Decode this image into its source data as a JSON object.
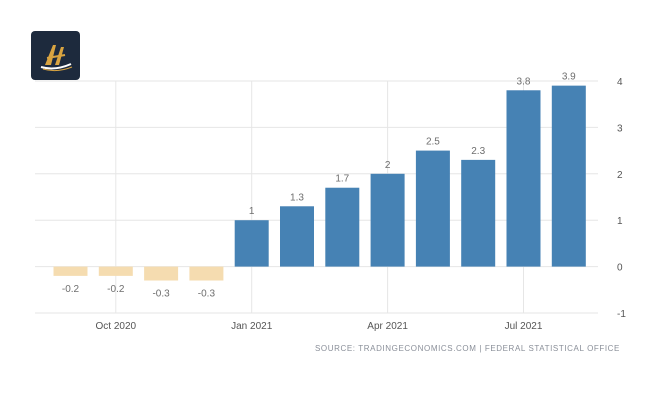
{
  "logo": {
    "icon": "brand-logo-icon",
    "colors": {
      "bg": "#1d2a3d",
      "gold": "#d9a441",
      "white": "#ffffff"
    }
  },
  "chart_data": {
    "type": "bar",
    "categories": [
      "Sep 2020",
      "Oct 2020",
      "Nov 2020",
      "Dec 2020",
      "Jan 2021",
      "Feb 2021",
      "Mar 2021",
      "Apr 2021",
      "May 2021",
      "Jun 2021",
      "Jul 2021",
      "Aug 2021"
    ],
    "values": [
      -0.2,
      -0.2,
      -0.3,
      -0.3,
      1,
      1.3,
      1.7,
      2,
      2.5,
      2.3,
      3.8,
      3.9
    ],
    "value_labels": [
      "-0.2",
      "-0.2",
      "-0.3",
      "-0.3",
      "1",
      "1.3",
      "1.7",
      "2",
      "2.5",
      "2.3",
      "3.8",
      "3.9"
    ],
    "x_tick_labels": [
      {
        "category": "Oct 2020",
        "label": "Oct 2020"
      },
      {
        "category": "Jan 2021",
        "label": "Jan 2021"
      },
      {
        "category": "Apr 2021",
        "label": "Apr 2021"
      },
      {
        "category": "Jul 2021",
        "label": "Jul 2021"
      }
    ],
    "y_ticks": [
      4,
      3,
      2,
      1,
      0,
      -1
    ],
    "ylim": [
      -1,
      4
    ],
    "y_axis_side": "right",
    "grid": true,
    "colors": {
      "positive": "#4682b4",
      "negative": "#f5dcb0",
      "grid": "#e6e6e6",
      "text": "#555555"
    }
  },
  "source": "SOURCE: TRADINGECONOMICS.COM | FEDERAL STATISTICAL OFFICE"
}
